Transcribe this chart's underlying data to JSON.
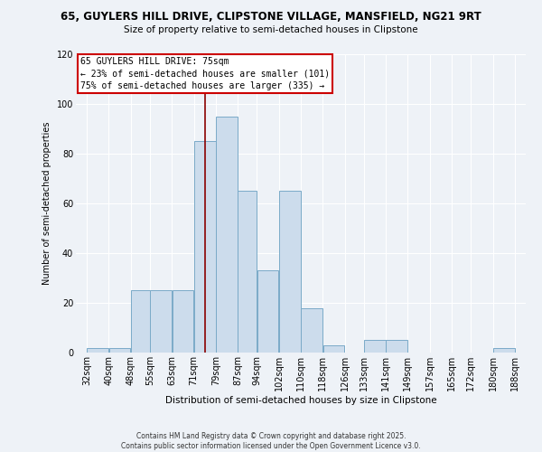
{
  "title_line1": "65, GUYLERS HILL DRIVE, CLIPSTONE VILLAGE, MANSFIELD, NG21 9RT",
  "title_line2": "Size of property relative to semi-detached houses in Clipstone",
  "xlabel": "Distribution of semi-detached houses by size in Clipstone",
  "ylabel": "Number of semi-detached properties",
  "property_label": "65 GUYLERS HILL DRIVE: 75sqm",
  "pct_smaller": 23,
  "count_smaller": 101,
  "pct_larger": 75,
  "count_larger": 335,
  "bin_edges": [
    32,
    40,
    48,
    55,
    63,
    71,
    79,
    87,
    94,
    102,
    110,
    118,
    126,
    133,
    141,
    149,
    157,
    165,
    172,
    180,
    188
  ],
  "bar_heights": [
    2,
    2,
    25,
    25,
    25,
    85,
    95,
    65,
    33,
    65,
    18,
    3,
    0,
    5,
    5,
    0,
    0,
    0,
    0,
    2
  ],
  "bar_color": "#ccdcec",
  "bar_edge_color": "#7aaac8",
  "vline_color": "#8b0000",
  "vline_x": 75,
  "annotation_box_color": "#ffffff",
  "annotation_box_edge": "#cc0000",
  "ylim": [
    0,
    120
  ],
  "yticks": [
    0,
    20,
    40,
    60,
    80,
    100,
    120
  ],
  "background_color": "#eef2f7",
  "grid_color": "#ffffff",
  "footer_line1": "Contains HM Land Registry data © Crown copyright and database right 2025.",
  "footer_line2": "Contains public sector information licensed under the Open Government Licence v3.0."
}
